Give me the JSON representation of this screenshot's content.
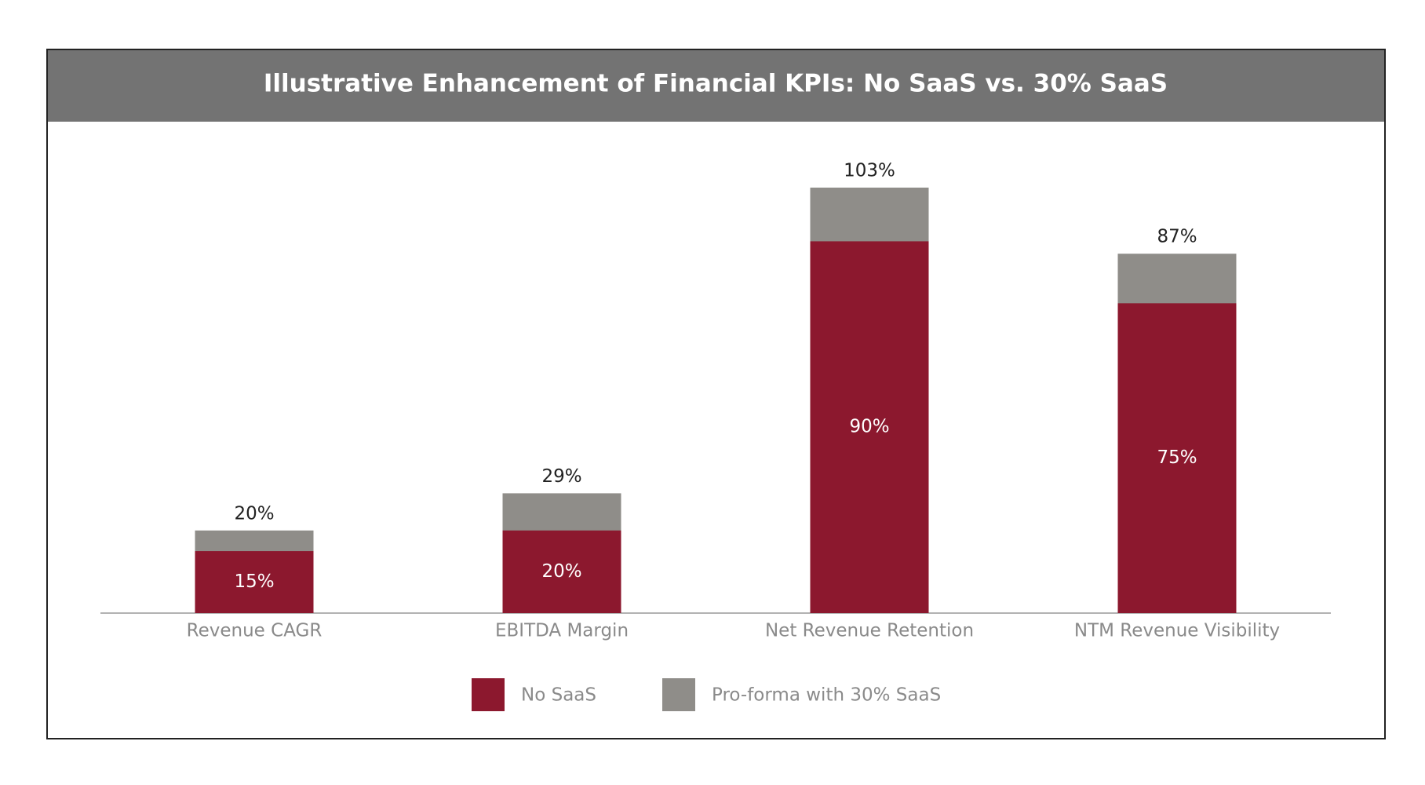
{
  "chart_data": {
    "type": "bar",
    "mode": "overlay",
    "title": "Illustrative Enhancement of Financial KPIs: No SaaS vs. 30% SaaS",
    "categories": [
      "Revenue CAGR",
      "EBITDA Margin",
      "Net Revenue Retention",
      "NTM Revenue Visibility"
    ],
    "series": [
      {
        "name": "No SaaS",
        "color": "#8c182e",
        "values": [
          15,
          20,
          90,
          75
        ],
        "value_labels": [
          "15%",
          "20%",
          "90%",
          "75%"
        ]
      },
      {
        "name": "Pro-forma with 30% SaaS",
        "color": "#8f8d89",
        "values": [
          20,
          29,
          103,
          87
        ],
        "value_labels": [
          "20%",
          "29%",
          "103%",
          "87%"
        ]
      }
    ]
  }
}
